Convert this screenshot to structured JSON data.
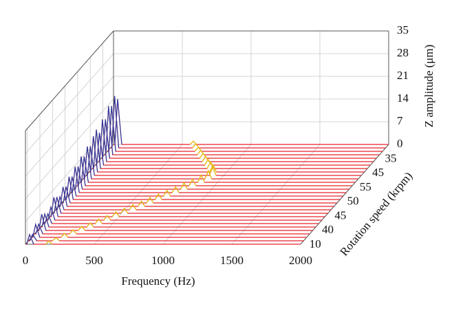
{
  "chart_data": {
    "type": "waterfall",
    "x_label": "Frequency (Hz)",
    "z_label": "Z amplitude (μm)",
    "depth_label": "Rotation speed (krpm)",
    "xlim": [
      0,
      2000
    ],
    "xticks": [
      0,
      500,
      1000,
      1500,
      2000
    ],
    "zlim": [
      0,
      35
    ],
    "zticks": [
      0,
      7,
      14,
      21,
      28,
      35
    ],
    "depth_ticks": [
      "10",
      "40",
      "45",
      "50",
      "55",
      "45",
      "35"
    ],
    "trace_color": "#e8202a",
    "spike_color": "#2b3da0",
    "ridge_color": "#e8c020",
    "trace_peak_frequency": [
      170,
      200,
      240,
      280,
      320,
      360,
      400,
      440,
      480,
      520,
      560,
      600,
      640,
      680,
      720,
      760,
      800,
      840,
      880,
      910,
      920,
      900,
      860,
      820,
      780,
      740,
      700,
      660,
      620,
      580
    ],
    "trace_peak_amplitude": [
      1,
      1,
      1.2,
      1.2,
      1.3,
      1.3,
      1.4,
      1.4,
      1.5,
      1.5,
      1.6,
      1.6,
      1.7,
      1.7,
      1.8,
      1.8,
      2,
      2,
      2.2,
      2.5,
      2.5,
      2.2,
      2,
      1.8,
      1.6,
      1.5,
      1.4,
      1.3,
      1.2,
      1
    ],
    "trace_low_amplitude": [
      3,
      2,
      4,
      3,
      5,
      4,
      3,
      4,
      6,
      5,
      4,
      6,
      5,
      7,
      6,
      8,
      7,
      9,
      8,
      10,
      9,
      11,
      12,
      10,
      13,
      12,
      15,
      14,
      16,
      14
    ]
  }
}
